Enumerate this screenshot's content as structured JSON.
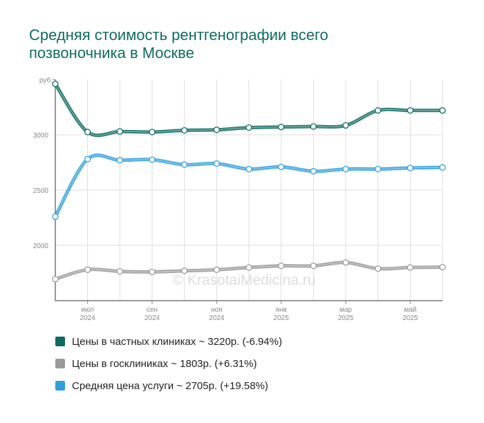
{
  "chart_data": {
    "type": "line",
    "title": "Средняя стоимость рентгенографии всего позвоночника в Москве",
    "ylabel": "руб.",
    "ylim": [
      1500,
      3500
    ],
    "yticks": [
      2000,
      2500,
      3000
    ],
    "x": [
      "2024-05",
      "2024-06",
      "2024-07",
      "2024-08",
      "2024-09",
      "2024-10",
      "2024-11",
      "2024-12",
      "2025-01",
      "2025-02",
      "2025-03",
      "2025-04",
      "2025-05"
    ],
    "xtick_labels": [
      {
        "month": "июл",
        "year": "2024"
      },
      {
        "month": "сен",
        "year": "2024"
      },
      {
        "month": "ноя",
        "year": "2024"
      },
      {
        "month": "янв",
        "year": "2025"
      },
      {
        "month": "мар",
        "year": "2025"
      },
      {
        "month": "май",
        "year": "2025"
      }
    ],
    "series": [
      {
        "name": "Цены в частных клиниках",
        "color": "#0e6b63",
        "values": [
          3460,
          3025,
          3030,
          3025,
          3040,
          3045,
          3065,
          3070,
          3075,
          3085,
          3220,
          3220,
          3220
        ]
      },
      {
        "name": "Цены в госклиниках",
        "color": "#9a9a9a",
        "values": [
          1695,
          1780,
          1765,
          1760,
          1770,
          1780,
          1800,
          1815,
          1815,
          1845,
          1790,
          1800,
          1803
        ]
      },
      {
        "name": "Средняя цена услуги",
        "color": "#2f9fdf",
        "values": [
          2260,
          2780,
          2770,
          2775,
          2730,
          2740,
          2690,
          2710,
          2670,
          2690,
          2690,
          2700,
          2705
        ]
      }
    ],
    "grid": true,
    "legend_position": "bottom",
    "watermark": "© KrasotaiMedicina.ru"
  },
  "legend": [
    {
      "label": "Цены в частных клиниках ~ 3220р. (-6.94%)",
      "color": "#0e6b63"
    },
    {
      "label": "Цены в госклиниках ~ 1803р. (+6.31%)",
      "color": "#9a9a9a"
    },
    {
      "label": "Средняя цена услуги ~ 2705р. (+19.58%)",
      "color": "#2f9fdf"
    }
  ]
}
